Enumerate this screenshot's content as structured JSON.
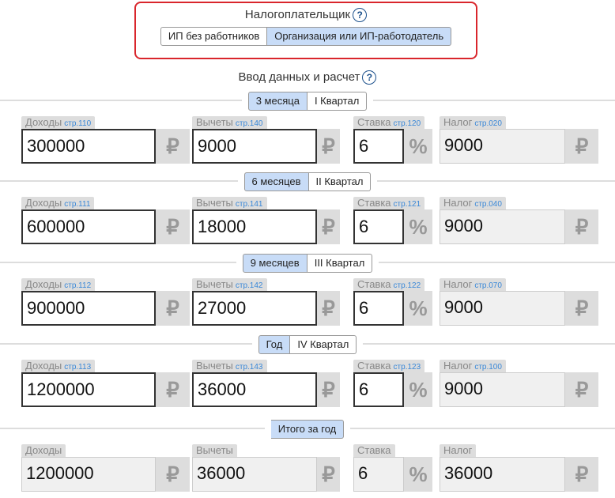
{
  "taxpayer": {
    "label": "Налогоплательщик",
    "help": "?",
    "options": [
      "ИП без работников",
      "Организация или ИП-работодатель"
    ]
  },
  "calc": {
    "title": "Ввод данных и расчет",
    "help": "?",
    "currency": "₽",
    "percent": "%",
    "rows": [
      {
        "period": "3 месяца",
        "quarter": "I Квартал",
        "income": {
          "label": "Доходы",
          "line": "стр.110",
          "value": "300000"
        },
        "deductions": {
          "label": "Вычеты",
          "line": "стр.140",
          "value": "9000"
        },
        "rate": {
          "label": "Ставка",
          "line": "стр.120",
          "value": "6"
        },
        "tax": {
          "label": "Налог",
          "line": "стр.020",
          "value": "9000"
        }
      },
      {
        "period": "6 месяцев",
        "quarter": "II Квартал",
        "income": {
          "label": "Доходы",
          "line": "стр.111",
          "value": "600000"
        },
        "deductions": {
          "label": "Вычеты",
          "line": "стр.141",
          "value": "18000"
        },
        "rate": {
          "label": "Ставка",
          "line": "стр.121",
          "value": "6"
        },
        "tax": {
          "label": "Налог",
          "line": "стр.040",
          "value": "9000"
        }
      },
      {
        "period": "9 месяцев",
        "quarter": "III Квартал",
        "income": {
          "label": "Доходы",
          "line": "стр.112",
          "value": "900000"
        },
        "deductions": {
          "label": "Вычеты",
          "line": "стр.142",
          "value": "27000"
        },
        "rate": {
          "label": "Ставка",
          "line": "стр.122",
          "value": "6"
        },
        "tax": {
          "label": "Налог",
          "line": "стр.070",
          "value": "9000"
        }
      },
      {
        "period": "Год",
        "quarter": "IV Квартал",
        "income": {
          "label": "Доходы",
          "line": "стр.113",
          "value": "1200000"
        },
        "deductions": {
          "label": "Вычеты",
          "line": "стр.143",
          "value": "36000"
        },
        "rate": {
          "label": "Ставка",
          "line": "стр.123",
          "value": "6"
        },
        "tax": {
          "label": "Налог",
          "line": "стр.100",
          "value": "9000"
        }
      }
    ],
    "total": {
      "period": "Итого за год",
      "income": {
        "label": "Доходы",
        "value": "1200000"
      },
      "deductions": {
        "label": "Вычеты",
        "value": "36000"
      },
      "rate": {
        "label": "Ставка",
        "value": "6"
      },
      "tax": {
        "label": "Налог",
        "value": "36000"
      }
    }
  }
}
